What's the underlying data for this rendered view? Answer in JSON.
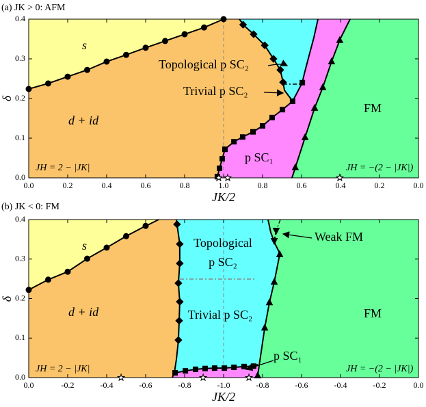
{
  "chart_data": [
    {
      "type": "phase",
      "panel_label": "(a) JK > 0: AFM",
      "xlabel": "JK/2",
      "ylabel": "δ",
      "xlim": [
        0,
        2
      ],
      "ylim": [
        0,
        0.4
      ],
      "xticks": [
        {
          "value": 0,
          "label": "0.0"
        },
        0.2,
        0.4,
        0.6,
        0.8,
        {
          "value": 1,
          "label": "1.0"
        },
        {
          "value": 1.2,
          "label": "0.8"
        },
        {
          "value": 1.4,
          "label": "0.6"
        },
        {
          "value": 1.6,
          "label": "0.4"
        },
        {
          "value": 1.8,
          "label": "0.2"
        },
        {
          "value": 2,
          "label": "0.0"
        }
      ],
      "yticks": [
        {
          "value": 0,
          "label": "0.0"
        },
        0.1,
        0.2,
        0.3,
        0.4
      ],
      "annotations": [
        "s",
        "Topological p SC₂",
        "Trivial p SC₂",
        "d + id",
        "p SC₁",
        "FM",
        "JH = 2 − |JK|",
        "JH = −(2 − |JK|)"
      ],
      "series": [
        {
          "marker": "circle",
          "color": "#000000",
          "x": [
            0,
            0.1,
            0.2,
            0.3,
            0.4,
            0.5,
            0.6,
            0.7,
            0.8,
            0.9,
            1.0
          ],
          "values": [
            0.224,
            0.238,
            0.255,
            0.272,
            0.293,
            0.31,
            0.328,
            0.345,
            0.362,
            0.379,
            0.4
          ]
        },
        {
          "marker": "diamond",
          "color": "#000000",
          "x": [
            1.1,
            1.154,
            1.211,
            1.256,
            1.291,
            1.305
          ],
          "values": [
            0.386,
            0.362,
            0.334,
            0.3,
            0.272,
            0.241
          ]
        },
        {
          "marker": "square",
          "color": "#000000",
          "x": [
            0.968,
            0.979,
            0.993,
            1.007,
            1.053,
            1.098,
            1.151,
            1.2,
            1.249,
            1.302,
            1.354,
            1.404
          ],
          "values": [
            0.003,
            0.024,
            0.048,
            0.072,
            0.091,
            0.103,
            0.116,
            0.131,
            0.152,
            0.172,
            0.193,
            0.24
          ]
        },
        {
          "marker": "triangle",
          "color": "#000000",
          "x": [
            1.368,
            1.418,
            1.467,
            1.509,
            1.554,
            1.596
          ],
          "values": [
            0.026,
            0.102,
            0.176,
            0.228,
            0.293,
            0.347
          ]
        },
        {
          "marker": "star",
          "color": "#000000",
          "line": false,
          "x": [
            0.975,
            1.021,
            1.596
          ],
          "values": [
            0,
            0,
            0
          ]
        }
      ]
    },
    {
      "type": "phase",
      "panel_label": "(b) JK < 0: FM",
      "xlabel": "JK/2",
      "ylabel": "δ",
      "xlim": [
        0,
        -2
      ],
      "ylim": [
        0,
        0.4
      ],
      "xticks": [
        {
          "value": 0,
          "label": "0.0"
        },
        -0.2,
        -0.4,
        -0.6,
        -0.8,
        {
          "value": -1,
          "label": "-1.0"
        },
        {
          "value": -1.2,
          "label": "-0.8"
        },
        {
          "value": -1.4,
          "label": "-0.6"
        },
        {
          "value": -1.6,
          "label": "-0.4"
        },
        {
          "value": -1.8,
          "label": "-0.2"
        },
        {
          "value": -2,
          "label": "0.0"
        }
      ],
      "yticks": [
        {
          "value": 0,
          "label": "0.0"
        },
        0.1,
        0.2,
        0.3,
        0.4
      ],
      "annotations": [
        "s",
        "Topological",
        "p SC₂",
        "d + id",
        "Trivial p SC₂",
        "FM",
        "p SC₁",
        "Weak FM",
        "JH = 2 − |JK|",
        "JH = −(2 − |JK|)"
      ],
      "series": [
        {
          "marker": "circle",
          "color": "#000000",
          "x": [
            0,
            -0.1,
            -0.2,
            -0.3,
            -0.4,
            -0.5,
            -0.6
          ],
          "values": [
            0.222,
            0.248,
            0.268,
            0.301,
            0.329,
            0.358,
            0.384
          ]
        },
        {
          "marker": "diamond",
          "color": "#000000",
          "x": [
            -0.761,
            -0.775,
            -0.775,
            -0.768,
            -0.775,
            -0.772,
            -0.768
          ],
          "values": [
            0.388,
            0.338,
            0.289,
            0.239,
            0.192,
            0.144,
            0.095
          ]
        },
        {
          "marker": "square",
          "color": "#000000",
          "x": [
            -0.751,
            -0.804,
            -0.856,
            -0.905,
            -0.954,
            -1.004,
            -1.053,
            -1.105,
            -1.154
          ],
          "values": [
            0.012,
            0.017,
            0.021,
            0.023,
            0.024,
            0.024,
            0.026,
            0.028,
            0.029
          ]
        },
        {
          "marker": "triangle",
          "color": "#000000",
          "x": [
            -1.175,
            -1.211,
            -1.235,
            -1.26,
            -1.288
          ],
          "values": [
            0.005,
            0.126,
            0.19,
            0.242,
            0.312
          ]
        },
        {
          "marker": "triangle-down",
          "color": "#000000",
          "line_style": "dash",
          "x": [
            -1.27,
            -1.26
          ],
          "values": [
            0.372,
            0.346
          ]
        },
        {
          "marker": "star",
          "color": "#000000",
          "line": false,
          "x": [
            -0.474,
            -0.895,
            -1.13
          ],
          "values": [
            0,
            0,
            0
          ]
        }
      ]
    }
  ]
}
